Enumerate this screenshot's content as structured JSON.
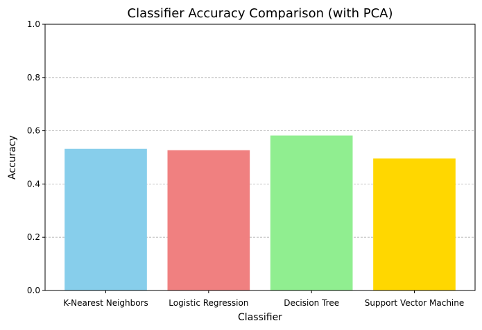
{
  "chart_data": {
    "type": "bar",
    "title": "Classifier Accuracy Comparison (with PCA)",
    "xlabel": "Classifier",
    "ylabel": "Accuracy",
    "categories": [
      "K-Nearest Neighbors",
      "Logistic Regression",
      "Decision Tree",
      "Support Vector Machine"
    ],
    "values": [
      0.532,
      0.527,
      0.582,
      0.496
    ],
    "colors": [
      "#87ceeb",
      "#f08080",
      "#90ee90",
      "#ffd700"
    ],
    "ylim": [
      0,
      1.0
    ],
    "yticks": [
      0.0,
      0.2,
      0.4,
      0.6,
      0.8,
      1.0
    ],
    "ytick_labels": [
      "0.0",
      "0.2",
      "0.4",
      "0.6",
      "0.8",
      "1.0"
    ],
    "grid": "y-axis, dashed",
    "legend": "none"
  }
}
